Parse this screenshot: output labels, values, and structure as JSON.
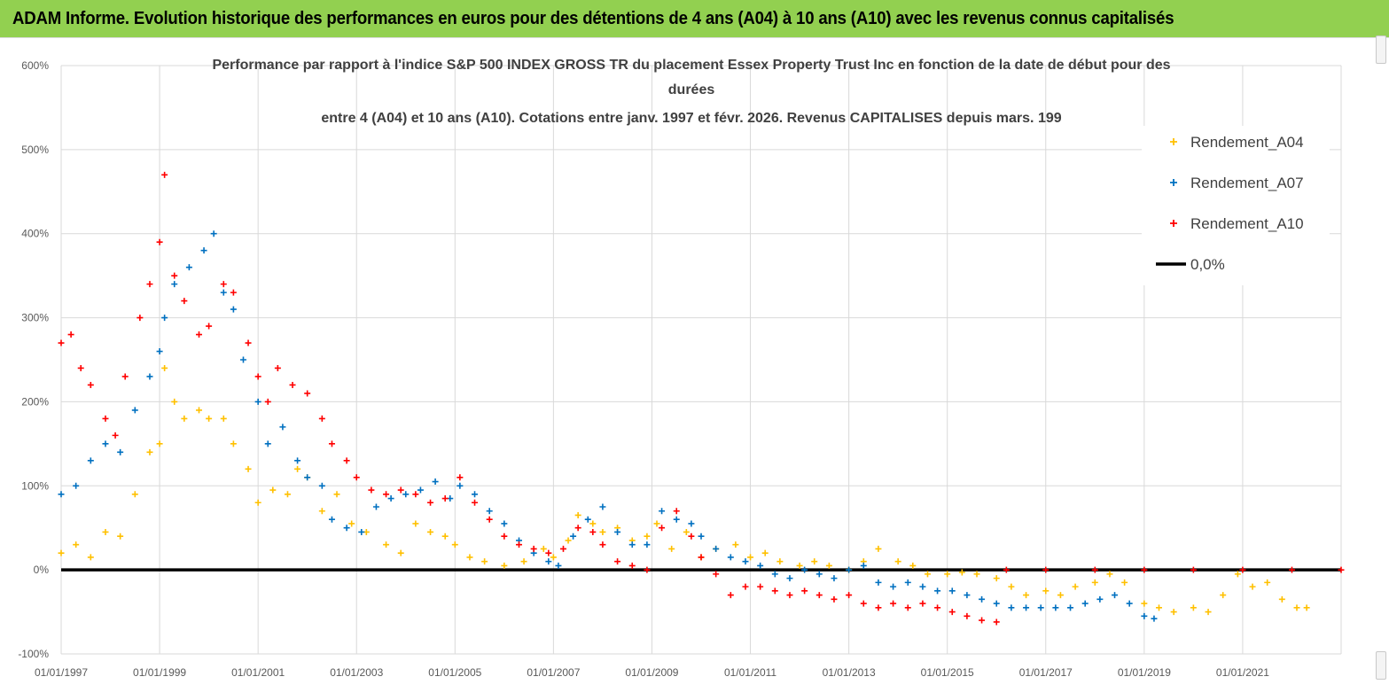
{
  "header": {
    "title": "ADAM Informe. Evolution historique des performances en euros pour des détentions de 4 ans (A04) à 10 ans (A10) avec les revenus connus capitalisés",
    "background_color": "#92d050"
  },
  "chart_data": {
    "type": "scatter",
    "title_lines": [
      "Performance par rapport à l'indice S&P 500 INDEX GROSS TR  du placement Essex Property Trust Inc en fonction de la date de début pour des",
      "durées",
      "entre 4 (A04) et 10 ans (A10). Cotations entre janv. 1997 et févr. 2026. Revenus CAPITALISES depuis mars. 199"
    ],
    "y_ticks": [
      "600%",
      "500%",
      "400%",
      "300%",
      "200%",
      "100%",
      "0%",
      "-100%"
    ],
    "ylim": [
      -100,
      600
    ],
    "x_ticks": [
      "01/01/1997",
      "01/01/1999",
      "01/01/2001",
      "01/01/2003",
      "01/01/2005",
      "01/01/2007",
      "01/01/2009",
      "01/01/2011",
      "01/01/2013",
      "01/01/2015",
      "01/01/2017",
      "01/01/2019",
      "01/01/2021"
    ],
    "xlim": [
      1997.0,
      2023.0
    ],
    "grid": true,
    "legend_position": "top-right",
    "series": [
      {
        "name": "Rendement_A04",
        "color": "#ffc000",
        "marker": "+",
        "points": [
          [
            1997.0,
            20
          ],
          [
            1997.3,
            30
          ],
          [
            1997.6,
            15
          ],
          [
            1997.9,
            45
          ],
          [
            1998.2,
            40
          ],
          [
            1998.5,
            90
          ],
          [
            1998.8,
            140
          ],
          [
            1999.0,
            150
          ],
          [
            1999.1,
            240
          ],
          [
            1999.3,
            200
          ],
          [
            1999.5,
            180
          ],
          [
            1999.8,
            190
          ],
          [
            2000.0,
            180
          ],
          [
            2000.3,
            180
          ],
          [
            2000.5,
            150
          ],
          [
            2000.8,
            120
          ],
          [
            2001.0,
            80
          ],
          [
            2001.3,
            95
          ],
          [
            2001.6,
            90
          ],
          [
            2001.8,
            120
          ],
          [
            2002.0,
            110
          ],
          [
            2002.3,
            70
          ],
          [
            2002.6,
            90
          ],
          [
            2002.9,
            55
          ],
          [
            2003.2,
            45
          ],
          [
            2003.6,
            30
          ],
          [
            2003.9,
            20
          ],
          [
            2004.2,
            55
          ],
          [
            2004.5,
            45
          ],
          [
            2004.8,
            40
          ],
          [
            2005.0,
            30
          ],
          [
            2005.3,
            15
          ],
          [
            2005.6,
            10
          ],
          [
            2006.0,
            5
          ],
          [
            2006.4,
            10
          ],
          [
            2006.8,
            25
          ],
          [
            2007.0,
            15
          ],
          [
            2007.3,
            35
          ],
          [
            2007.5,
            65
          ],
          [
            2007.8,
            55
          ],
          [
            2008.0,
            45
          ],
          [
            2008.3,
            50
          ],
          [
            2008.6,
            35
          ],
          [
            2008.9,
            40
          ],
          [
            2009.1,
            55
          ],
          [
            2009.4,
            25
          ],
          [
            2009.7,
            45
          ],
          [
            2010.0,
            15
          ],
          [
            2010.3,
            25
          ],
          [
            2010.7,
            30
          ],
          [
            2011.0,
            15
          ],
          [
            2011.3,
            20
          ],
          [
            2011.6,
            10
          ],
          [
            2012.0,
            5
          ],
          [
            2012.3,
            10
          ],
          [
            2012.6,
            5
          ],
          [
            2013.0,
            0
          ],
          [
            2013.3,
            10
          ],
          [
            2013.6,
            25
          ],
          [
            2014.0,
            10
          ],
          [
            2014.3,
            5
          ],
          [
            2014.6,
            -5
          ],
          [
            2015.0,
            -5
          ],
          [
            2015.3,
            -3
          ],
          [
            2015.6,
            -5
          ],
          [
            2016.0,
            -10
          ],
          [
            2016.3,
            -20
          ],
          [
            2016.6,
            -30
          ],
          [
            2017.0,
            -25
          ],
          [
            2017.3,
            -30
          ],
          [
            2017.6,
            -20
          ],
          [
            2018.0,
            -15
          ],
          [
            2018.3,
            -5
          ],
          [
            2018.6,
            -15
          ],
          [
            2019.0,
            -40
          ],
          [
            2019.3,
            -45
          ],
          [
            2019.6,
            -50
          ],
          [
            2020.0,
            -45
          ],
          [
            2020.3,
            -50
          ],
          [
            2020.6,
            -30
          ],
          [
            2020.9,
            -5
          ],
          [
            2021.2,
            -20
          ],
          [
            2021.5,
            -15
          ],
          [
            2021.8,
            -35
          ],
          [
            2022.1,
            -45
          ],
          [
            2022.3,
            -45
          ]
        ]
      },
      {
        "name": "Rendement_A07",
        "color": "#0070c0",
        "marker": "+",
        "points": [
          [
            1997.0,
            90
          ],
          [
            1997.3,
            100
          ],
          [
            1997.6,
            130
          ],
          [
            1997.9,
            150
          ],
          [
            1998.2,
            140
          ],
          [
            1998.5,
            190
          ],
          [
            1998.8,
            230
          ],
          [
            1999.0,
            260
          ],
          [
            1999.1,
            300
          ],
          [
            1999.3,
            340
          ],
          [
            1999.6,
            360
          ],
          [
            1999.9,
            380
          ],
          [
            2000.1,
            400
          ],
          [
            2000.3,
            330
          ],
          [
            2000.5,
            310
          ],
          [
            2000.7,
            250
          ],
          [
            2001.0,
            200
          ],
          [
            2001.2,
            150
          ],
          [
            2001.5,
            170
          ],
          [
            2001.8,
            130
          ],
          [
            2002.0,
            110
          ],
          [
            2002.3,
            100
          ],
          [
            2002.5,
            60
          ],
          [
            2002.8,
            50
          ],
          [
            2003.1,
            45
          ],
          [
            2003.4,
            75
          ],
          [
            2003.7,
            85
          ],
          [
            2004.0,
            90
          ],
          [
            2004.3,
            95
          ],
          [
            2004.6,
            105
          ],
          [
            2004.9,
            85
          ],
          [
            2005.1,
            100
          ],
          [
            2005.4,
            90
          ],
          [
            2005.7,
            70
          ],
          [
            2006.0,
            55
          ],
          [
            2006.3,
            35
          ],
          [
            2006.6,
            20
          ],
          [
            2006.9,
            10
          ],
          [
            2007.1,
            5
          ],
          [
            2007.4,
            40
          ],
          [
            2007.7,
            60
          ],
          [
            2008.0,
            75
          ],
          [
            2008.3,
            45
          ],
          [
            2008.6,
            30
          ],
          [
            2008.9,
            30
          ],
          [
            2009.2,
            70
          ],
          [
            2009.5,
            60
          ],
          [
            2009.8,
            55
          ],
          [
            2010.0,
            40
          ],
          [
            2010.3,
            25
          ],
          [
            2010.6,
            15
          ],
          [
            2010.9,
            10
          ],
          [
            2011.2,
            5
          ],
          [
            2011.5,
            -5
          ],
          [
            2011.8,
            -10
          ],
          [
            2012.1,
            0
          ],
          [
            2012.4,
            -5
          ],
          [
            2012.7,
            -10
          ],
          [
            2013.0,
            0
          ],
          [
            2013.3,
            5
          ],
          [
            2013.6,
            -15
          ],
          [
            2013.9,
            -20
          ],
          [
            2014.2,
            -15
          ],
          [
            2014.5,
            -20
          ],
          [
            2014.8,
            -25
          ],
          [
            2015.1,
            -25
          ],
          [
            2015.4,
            -30
          ],
          [
            2015.7,
            -35
          ],
          [
            2016.0,
            -40
          ],
          [
            2016.3,
            -45
          ],
          [
            2016.6,
            -45
          ],
          [
            2016.9,
            -45
          ],
          [
            2017.2,
            -45
          ],
          [
            2017.5,
            -45
          ],
          [
            2017.8,
            -40
          ],
          [
            2018.1,
            -35
          ],
          [
            2018.4,
            -30
          ],
          [
            2018.7,
            -40
          ],
          [
            2019.0,
            -55
          ],
          [
            2019.2,
            -58
          ]
        ]
      },
      {
        "name": "Rendement_A10",
        "color": "#ff0000",
        "marker": "+",
        "points": [
          [
            1997.0,
            270
          ],
          [
            1997.2,
            280
          ],
          [
            1997.4,
            240
          ],
          [
            1997.6,
            220
          ],
          [
            1997.9,
            180
          ],
          [
            1998.1,
            160
          ],
          [
            1998.3,
            230
          ],
          [
            1998.6,
            300
          ],
          [
            1998.8,
            340
          ],
          [
            1999.0,
            390
          ],
          [
            1999.1,
            470
          ],
          [
            1999.3,
            350
          ],
          [
            1999.5,
            320
          ],
          [
            1999.8,
            280
          ],
          [
            2000.0,
            290
          ],
          [
            2000.3,
            340
          ],
          [
            2000.5,
            330
          ],
          [
            2000.8,
            270
          ],
          [
            2001.0,
            230
          ],
          [
            2001.2,
            200
          ],
          [
            2001.4,
            240
          ],
          [
            2001.7,
            220
          ],
          [
            2002.0,
            210
          ],
          [
            2002.3,
            180
          ],
          [
            2002.5,
            150
          ],
          [
            2002.8,
            130
          ],
          [
            2003.0,
            110
          ],
          [
            2003.3,
            95
          ],
          [
            2003.6,
            90
          ],
          [
            2003.9,
            95
          ],
          [
            2004.2,
            90
          ],
          [
            2004.5,
            80
          ],
          [
            2004.8,
            85
          ],
          [
            2005.1,
            110
          ],
          [
            2005.4,
            80
          ],
          [
            2005.7,
            60
          ],
          [
            2006.0,
            40
          ],
          [
            2006.3,
            30
          ],
          [
            2006.6,
            25
          ],
          [
            2006.9,
            20
          ],
          [
            2007.2,
            25
          ],
          [
            2007.5,
            50
          ],
          [
            2007.8,
            45
          ],
          [
            2008.0,
            30
          ],
          [
            2008.3,
            10
          ],
          [
            2008.6,
            5
          ],
          [
            2008.9,
            0
          ],
          [
            2009.2,
            50
          ],
          [
            2009.5,
            70
          ],
          [
            2009.8,
            40
          ],
          [
            2010.0,
            15
          ],
          [
            2010.3,
            -5
          ],
          [
            2010.6,
            -30
          ],
          [
            2010.9,
            -20
          ],
          [
            2011.2,
            -20
          ],
          [
            2011.5,
            -25
          ],
          [
            2011.8,
            -30
          ],
          [
            2012.1,
            -25
          ],
          [
            2012.4,
            -30
          ],
          [
            2012.7,
            -35
          ],
          [
            2013.0,
            -30
          ],
          [
            2013.3,
            -40
          ],
          [
            2013.6,
            -45
          ],
          [
            2013.9,
            -40
          ],
          [
            2014.2,
            -45
          ],
          [
            2014.5,
            -40
          ],
          [
            2014.8,
            -45
          ],
          [
            2015.1,
            -50
          ],
          [
            2015.4,
            -55
          ],
          [
            2015.7,
            -60
          ],
          [
            2016.0,
            -62
          ],
          [
            2016.2,
            0
          ],
          [
            2017.0,
            0
          ],
          [
            2018.0,
            0
          ],
          [
            2019.0,
            0
          ],
          [
            2020.0,
            0
          ],
          [
            2021.0,
            0
          ],
          [
            2022.0,
            0
          ],
          [
            2023.0,
            0
          ]
        ]
      }
    ],
    "reference_line": {
      "name": "0,0%",
      "y": 0,
      "color": "#000000"
    }
  }
}
